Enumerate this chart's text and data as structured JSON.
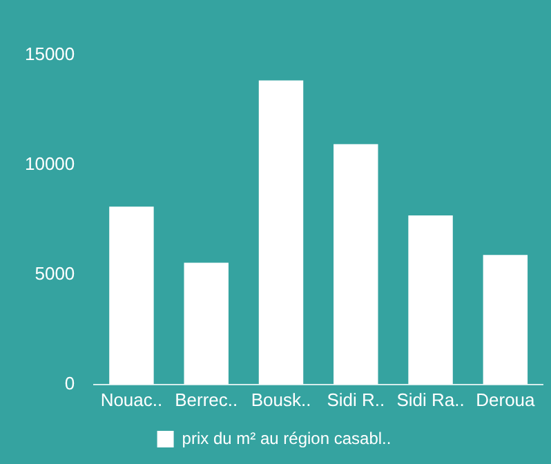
{
  "chart_data": {
    "type": "bar",
    "categories": [
      "Nouac..",
      "Berrec..",
      "Bousk..",
      "Sidi R..",
      "Sidi Ra..",
      "Deroua"
    ],
    "series": [
      {
        "name": "prix du m² au région casabl..",
        "color": "#ffffff",
        "values": [
          8100,
          5550,
          13850,
          10950,
          7700,
          5900
        ]
      }
    ],
    "ylim": [
      0,
      15000
    ],
    "yticks": [
      0,
      5000,
      10000,
      15000
    ],
    "grid": false,
    "legend": "bottom"
  }
}
